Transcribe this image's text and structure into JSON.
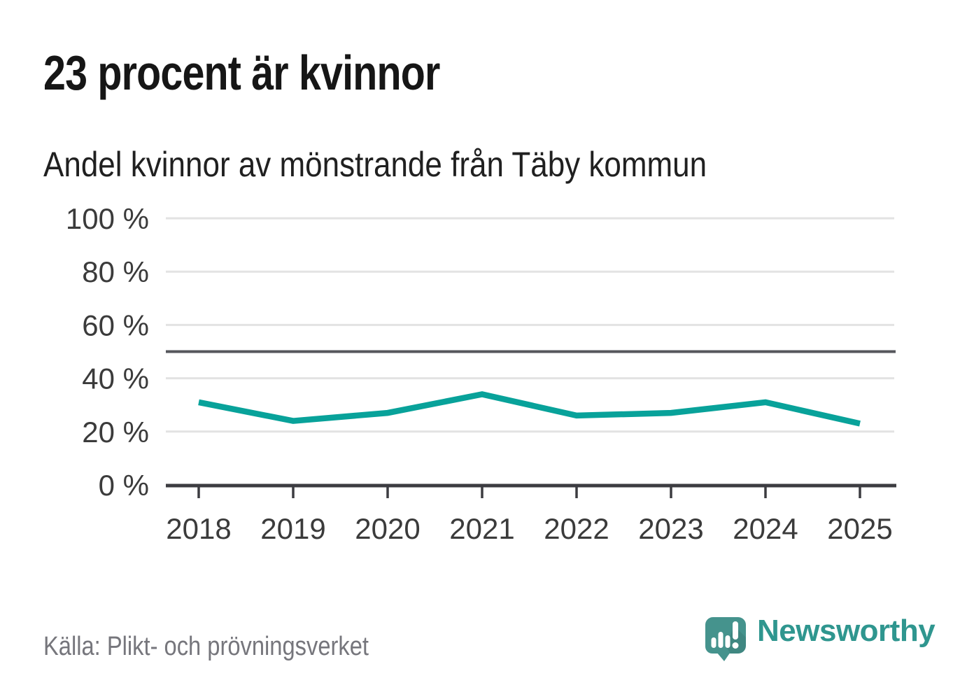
{
  "chart_data": {
    "type": "line",
    "title": "23 procent är kvinnor",
    "subtitle": "Andel kvinnor av mönstrande från Täby kommun",
    "x": [
      "2018",
      "2019",
      "2020",
      "2021",
      "2022",
      "2023",
      "2024",
      "2025"
    ],
    "series": [
      {
        "name": "Andel kvinnor av mönstrande",
        "values": [
          31,
          24,
          27,
          34,
          26,
          27,
          31,
          23
        ],
        "color": "#08a29a"
      }
    ],
    "xlabel": "",
    "ylabel": "",
    "ylim": [
      0,
      100
    ],
    "yticks": [
      0,
      20,
      40,
      60,
      80,
      100
    ],
    "ytick_labels": [
      "0 %",
      "20 %",
      "40 %",
      "60 %",
      "80 %",
      "100 %"
    ],
    "reference_line_y": 50,
    "grid": true,
    "legend_position": "none"
  },
  "footer": {
    "source": "Källa: Plikt- och prövningsverket",
    "brand": "Newsworthy"
  },
  "colors": {
    "line": "#08a29a",
    "grid": "#e3e3e3",
    "reference_line": "#56575c",
    "axis": "#3c3c41",
    "tick_text": "#3b3b3b",
    "brand_teal": "#2f968f",
    "brand_icon_teal": "#45938d"
  }
}
